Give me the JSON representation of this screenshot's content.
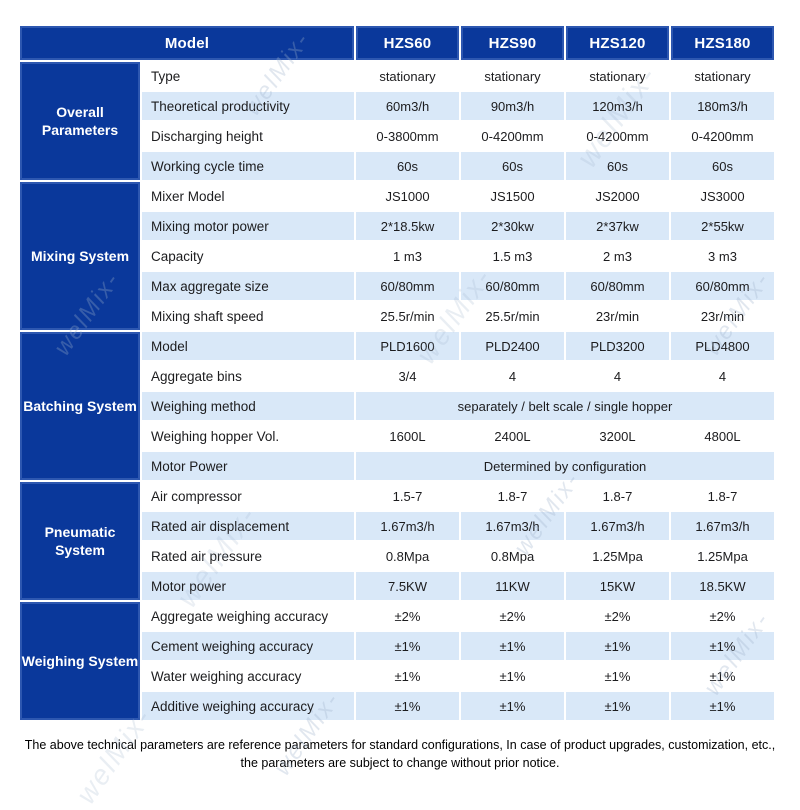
{
  "table": {
    "header": {
      "model_label": "Model",
      "columns": [
        "HZS60",
        "HZS90",
        "HZS120",
        "HZS180"
      ]
    },
    "sections": [
      {
        "group": "Overall Parameters",
        "rows": [
          {
            "label": "Type",
            "values": [
              "stationary",
              "stationary",
              "stationary",
              "stationary"
            ]
          },
          {
            "label": "Theoretical productivity",
            "values": [
              "60m3/h",
              "90m3/h",
              "120m3/h",
              "180m3/h"
            ]
          },
          {
            "label": "Discharging height",
            "values": [
              "0-3800mm",
              "0-4200mm",
              "0-4200mm",
              "0-4200mm"
            ]
          },
          {
            "label": "Working cycle time",
            "values": [
              "60s",
              "60s",
              "60s",
              "60s"
            ]
          }
        ]
      },
      {
        "group": "Mixing System",
        "rows": [
          {
            "label": "Mixer Model",
            "values": [
              "JS1000",
              "JS1500",
              "JS2000",
              "JS3000"
            ]
          },
          {
            "label": "Mixing motor power",
            "values": [
              "2*18.5kw",
              "2*30kw",
              "2*37kw",
              "2*55kw"
            ]
          },
          {
            "label": "Capacity",
            "values": [
              "1 m3",
              "1.5 m3",
              "2 m3",
              "3 m3"
            ]
          },
          {
            "label": "Max aggregate size",
            "values": [
              "60/80mm",
              "60/80mm",
              "60/80mm",
              "60/80mm"
            ]
          },
          {
            "label": "Mixing shaft speed",
            "values": [
              "25.5r/min",
              "25.5r/min",
              "23r/min",
              "23r/min"
            ]
          }
        ]
      },
      {
        "group": "Batching System",
        "rows": [
          {
            "label": "Model",
            "values": [
              "PLD1600",
              "PLD2400",
              "PLD3200",
              "PLD4800"
            ]
          },
          {
            "label": "Aggregate bins",
            "values": [
              "3/4",
              "4",
              "4",
              "4"
            ]
          },
          {
            "label": "Weighing method",
            "span": "separately  / belt scale / single hopper"
          },
          {
            "label": "Weighing hopper Vol.",
            "values": [
              "1600L",
              "2400L",
              "3200L",
              "4800L"
            ]
          },
          {
            "label": "Motor Power",
            "span": "Determined by configuration"
          }
        ]
      },
      {
        "group": "Pneumatic System",
        "rows": [
          {
            "label": "Air compressor",
            "values": [
              "1.5-7",
              "1.8-7",
              "1.8-7",
              "1.8-7"
            ]
          },
          {
            "label": "Rated air displacement",
            "values": [
              "1.67m3/h",
              "1.67m3/h",
              "1.67m3/h",
              "1.67m3/h"
            ]
          },
          {
            "label": "Rated air pressure",
            "values": [
              "0.8Mpa",
              "0.8Mpa",
              "1.25Mpa",
              "1.25Mpa"
            ]
          },
          {
            "label": "Motor power",
            "values": [
              "7.5KW",
              "11KW",
              "15KW",
              "18.5KW"
            ]
          }
        ]
      },
      {
        "group": "Weighing System",
        "rows": [
          {
            "label": "Aggregate weighing accuracy",
            "values": [
              "±2%",
              "±2%",
              "±2%",
              "±2%"
            ]
          },
          {
            "label": "Cement weighing accuracy",
            "values": [
              "±1%",
              "±1%",
              "±1%",
              "±1%"
            ]
          },
          {
            "label": "Water weighing accuracy",
            "values": [
              "±1%",
              "±1%",
              "±1%",
              "±1%"
            ]
          },
          {
            "label": "Additive weighing accuracy",
            "values": [
              "±1%",
              "±1%",
              "±1%",
              "±1%"
            ]
          }
        ]
      }
    ]
  },
  "footer": {
    "note_line1": "The above technical parameters are reference parameters for standard configurations, In case of  product upgrades, customization, etc.,",
    "note_line2": "the parameters are subject to change without prior notice."
  },
  "watermark": {
    "text": "welMix-"
  },
  "colors": {
    "header_blue": "#0a389b",
    "inner_border_blue": "#2d57b0",
    "stripe_blue": "#d9e8f8"
  }
}
